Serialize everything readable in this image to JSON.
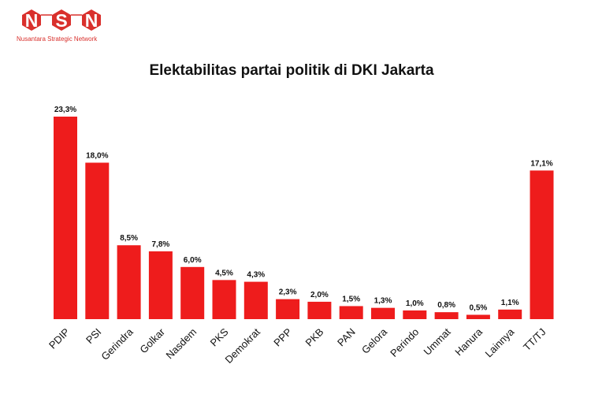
{
  "logo": {
    "letters": [
      "N",
      "S",
      "N"
    ],
    "subtitle": "Nusantara Strategic Network",
    "color": "#d9302c"
  },
  "chart_data": {
    "type": "bar",
    "title": "Elektabilitas partai politik di DKI Jakarta",
    "categories": [
      "PDIP",
      "PSI",
      "Gerindra",
      "Golkar",
      "Nasdem",
      "PKS",
      "Demokrat",
      "PPP",
      "PKB",
      "PAN",
      "Gelora",
      "Perindo",
      "Ummat",
      "Hanura",
      "Lainnya",
      "TT/TJ"
    ],
    "values": [
      23.3,
      18.0,
      8.5,
      7.8,
      6.0,
      4.5,
      4.3,
      2.3,
      2.0,
      1.5,
      1.3,
      1.0,
      0.8,
      0.5,
      1.1,
      17.1
    ],
    "value_labels": [
      "23,3%",
      "18,0%",
      "8,5%",
      "7,8%",
      "6,0%",
      "4,5%",
      "4,3%",
      "2,3%",
      "2,0%",
      "1,5%",
      "1,3%",
      "1,0%",
      "0,8%",
      "0,5%",
      "1,1%",
      "17,1%"
    ],
    "xlabel": "",
    "ylabel": "",
    "ylim": [
      0,
      23.3
    ],
    "grid": false,
    "legend": "none",
    "bar_color": "#ee1c1c"
  }
}
